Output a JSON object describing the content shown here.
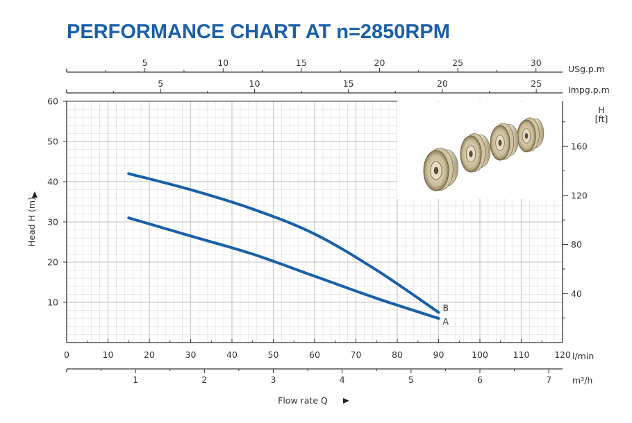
{
  "chart_data": {
    "type": "line",
    "title": "PERFORMANCE CHART AT n=2850RPM",
    "xlabel": "Flow rate Q",
    "ylabel": "Head H (m)",
    "xlim": [
      0,
      120
    ],
    "ylim": [
      0,
      60
    ],
    "x_ticks": [
      0,
      10,
      20,
      30,
      40,
      50,
      60,
      70,
      80,
      90,
      100,
      110,
      120
    ],
    "y_ticks": [
      10,
      20,
      30,
      40,
      50,
      60
    ],
    "x_unit": "l/min",
    "grid": true,
    "series": [
      {
        "name": "B",
        "x": [
          15,
          30,
          45,
          60,
          75,
          90
        ],
        "y": [
          42,
          38,
          33.2,
          27,
          18,
          7.5
        ]
      },
      {
        "name": "A",
        "x": [
          15,
          30,
          45,
          60,
          75,
          90
        ],
        "y": [
          31,
          26.5,
          22,
          16.5,
          11,
          6
        ]
      }
    ],
    "secondary_axes": {
      "usgpm": {
        "unit": "USg.p.m",
        "ticks": [
          5,
          10,
          15,
          20,
          25,
          30
        ],
        "max": 31.7
      },
      "impgpm": {
        "unit": "Impg.p.m",
        "ticks": [
          5,
          10,
          15,
          20,
          25
        ],
        "max": 26.4
      },
      "m3h": {
        "unit": "m³/h",
        "ticks": [
          1,
          2,
          3,
          4,
          5,
          6,
          7
        ],
        "max": 7.2
      },
      "feet": {
        "unit": "H\n[ft]",
        "unit_lines": [
          "H",
          "[ft]"
        ],
        "ticks": [
          40,
          80,
          120,
          160
        ],
        "max": 196.85
      }
    },
    "line_color": "#1a5fa8",
    "title_color": "#1a5fa8"
  }
}
